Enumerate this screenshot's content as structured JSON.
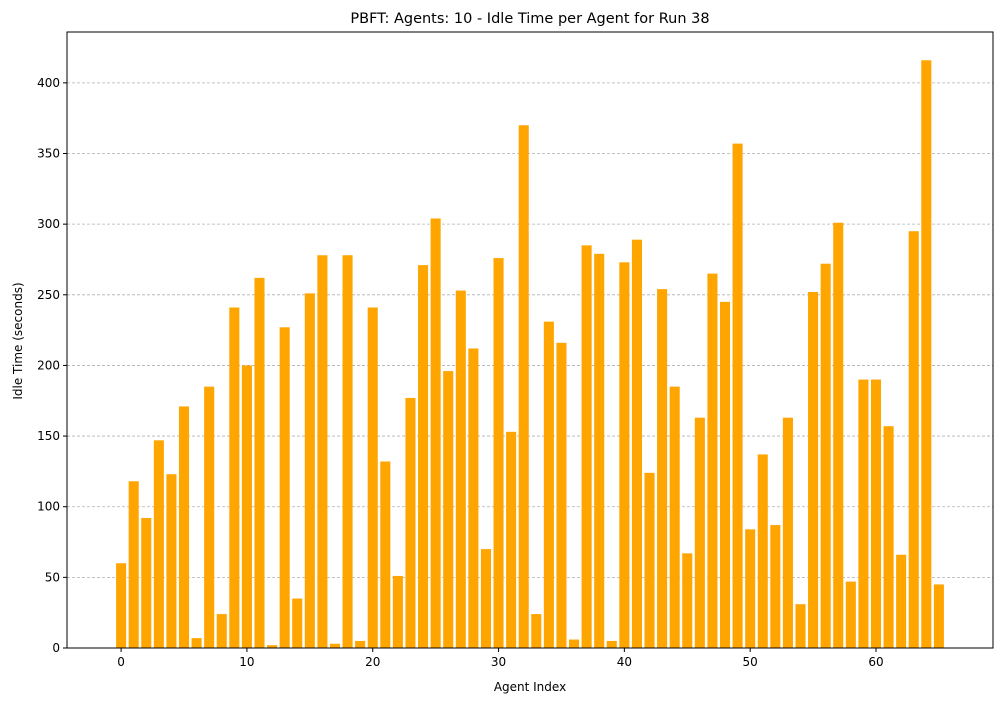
{
  "chart_data": {
    "type": "bar",
    "title": "PBFT: Agents: 10 - Idle Time per Agent for Run 38",
    "xlabel": "Agent Index",
    "ylabel": "Idle Time (seconds)",
    "bar_color": "#ffa500",
    "grid": "horizontal dashed",
    "xlim": [
      -4.3,
      69.3
    ],
    "ylim": [
      0,
      436
    ],
    "xticks": [
      0,
      10,
      20,
      30,
      40,
      50,
      60
    ],
    "yticks": [
      0,
      50,
      100,
      150,
      200,
      250,
      300,
      350,
      400
    ],
    "x": [
      0,
      1,
      2,
      3,
      4,
      5,
      6,
      7,
      8,
      9,
      10,
      11,
      12,
      13,
      14,
      15,
      16,
      17,
      18,
      19,
      20,
      21,
      22,
      23,
      24,
      25,
      26,
      27,
      28,
      29,
      30,
      31,
      32,
      33,
      34,
      35,
      36,
      37,
      38,
      39,
      40,
      41,
      42,
      43,
      44,
      45,
      46,
      47,
      48,
      49,
      50,
      51,
      52,
      53,
      54,
      55,
      56,
      57,
      58,
      59,
      60,
      61,
      62,
      63,
      64,
      65
    ],
    "values": [
      60,
      118,
      92,
      147,
      123,
      171,
      7,
      185,
      24,
      241,
      200,
      262,
      2,
      227,
      35,
      251,
      278,
      3,
      278,
      5,
      241,
      132,
      51,
      177,
      271,
      304,
      196,
      253,
      212,
      70,
      276,
      153,
      370,
      24,
      231,
      216,
      6,
      285,
      279,
      5,
      273,
      289,
      124,
      254,
      185,
      67,
      163,
      265,
      245,
      357,
      84,
      137,
      87,
      163,
      31,
      252,
      272,
      301,
      47,
      190,
      190,
      157,
      66,
      295,
      416,
      45
    ]
  }
}
